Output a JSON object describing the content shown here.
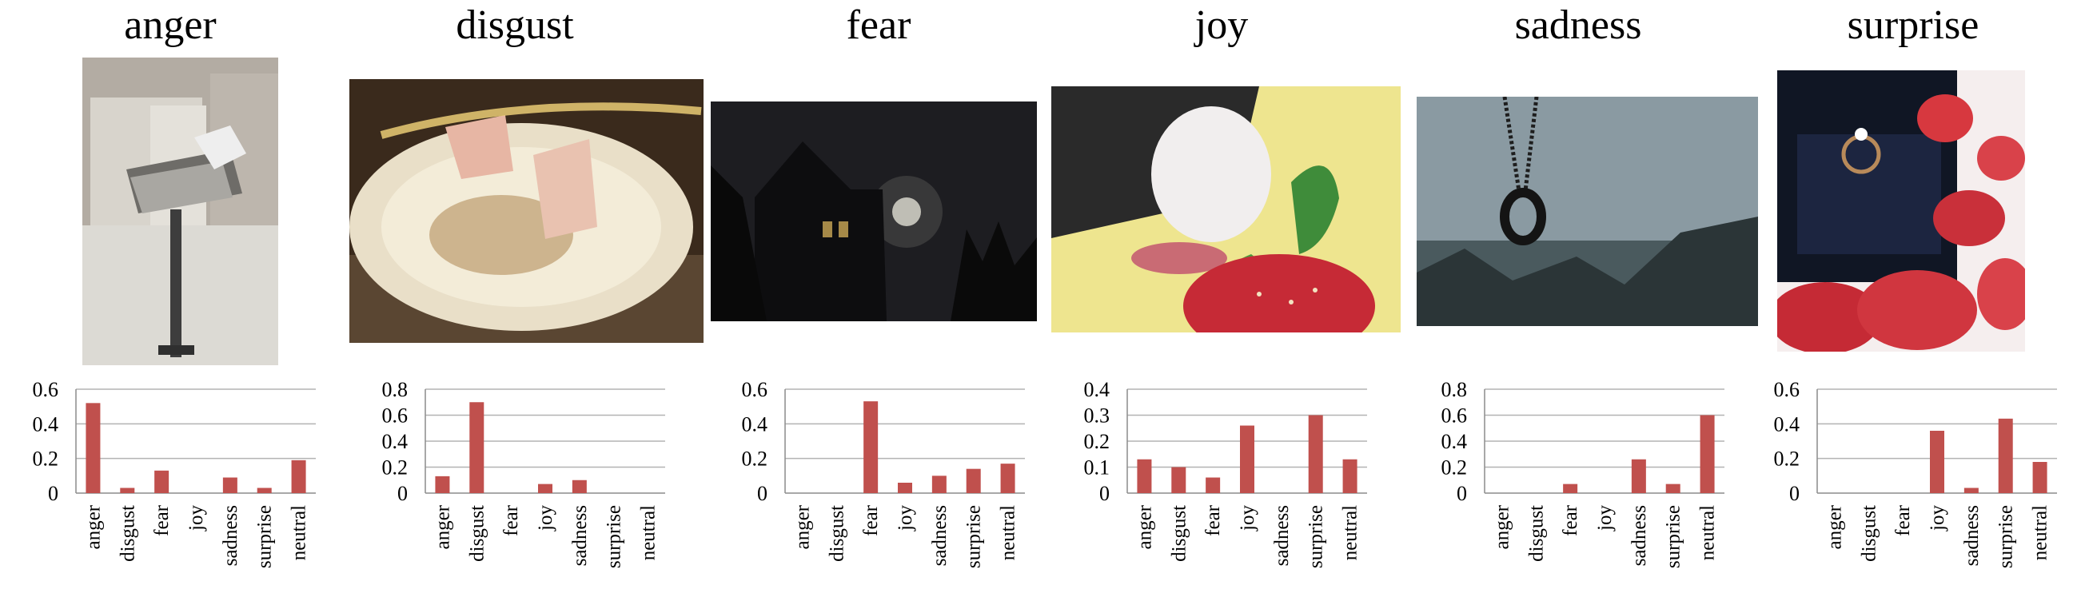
{
  "panels": [
    {
      "id": "anger",
      "title": "anger",
      "photo": "Broken computer monitor on a post in front of a garage"
    },
    {
      "id": "disgust",
      "title": "disgust",
      "photo": "Paper plate with used plastic cups covered in ants"
    },
    {
      "id": "fear",
      "title": "fear",
      "photo": "Dark house silhouette under a moonlit night sky"
    },
    {
      "id": "joy",
      "title": "joy",
      "photo": "Black and white cat sniffing a strawberry"
    },
    {
      "id": "sadness",
      "title": "sadness",
      "photo": "Dark ring pendant hanging against a grey sky"
    },
    {
      "id": "surprise",
      "title": "surprise",
      "photo": "Diamond ring in a box among red hearts"
    }
  ],
  "chart_data": [
    {
      "type": "bar",
      "title": "anger",
      "categories": [
        "anger",
        "disgust",
        "fear",
        "joy",
        "sadness",
        "surprise",
        "neutral"
      ],
      "values": [
        0.52,
        0.03,
        0.13,
        0,
        0.09,
        0.03,
        0.19
      ],
      "ylim": [
        0,
        0.6
      ],
      "yticks": [
        "0",
        "0.2",
        "0.4",
        "0.6"
      ],
      "grid": true,
      "color": "#c0504d"
    },
    {
      "type": "bar",
      "title": "disgust",
      "categories": [
        "anger",
        "disgust",
        "fear",
        "joy",
        "sadness",
        "surprise",
        "neutral"
      ],
      "values": [
        0.13,
        0.7,
        0,
        0.07,
        0.1,
        0,
        0
      ],
      "ylim": [
        0,
        0.8
      ],
      "yticks": [
        "0",
        "0.2",
        "0.4",
        "0.6",
        "0.8"
      ],
      "grid": true,
      "color": "#c0504d"
    },
    {
      "type": "bar",
      "title": "fear",
      "categories": [
        "anger",
        "disgust",
        "fear",
        "joy",
        "sadness",
        "surprise",
        "neutral"
      ],
      "values": [
        0,
        0,
        0.53,
        0.06,
        0.1,
        0.14,
        0.17
      ],
      "ylim": [
        0,
        0.6
      ],
      "yticks": [
        "0",
        "0.2",
        "0.4",
        "0.6"
      ],
      "grid": true,
      "color": "#c0504d"
    },
    {
      "type": "bar",
      "title": "joy",
      "categories": [
        "anger",
        "disgust",
        "fear",
        "joy",
        "sadness",
        "surprise",
        "neutral"
      ],
      "values": [
        0.13,
        0.1,
        0.06,
        0.26,
        0,
        0.3,
        0.13
      ],
      "ylim": [
        0,
        0.4
      ],
      "yticks": [
        "0",
        "0.1",
        "0.2",
        "0.3",
        "0.4"
      ],
      "grid": true,
      "color": "#c0504d"
    },
    {
      "type": "bar",
      "title": "sadness",
      "categories": [
        "anger",
        "disgust",
        "fear",
        "joy",
        "sadness",
        "surprise",
        "neutral"
      ],
      "values": [
        0,
        0,
        0.07,
        0,
        0.26,
        0.07,
        0.6
      ],
      "ylim": [
        0,
        0.8
      ],
      "yticks": [
        "0",
        "0.2",
        "0.4",
        "0.6",
        "0.8"
      ],
      "grid": true,
      "color": "#c0504d"
    },
    {
      "type": "bar",
      "title": "surprise",
      "categories": [
        "anger",
        "disgust",
        "fear",
        "joy",
        "sadness",
        "surprise",
        "neutral"
      ],
      "values": [
        0,
        0,
        0,
        0.36,
        0.03,
        0.43,
        0.18
      ],
      "ylim": [
        0,
        0.6
      ],
      "yticks": [
        "0",
        "0.2",
        "0.4",
        "0.6"
      ],
      "grid": true,
      "color": "#c0504d"
    }
  ]
}
